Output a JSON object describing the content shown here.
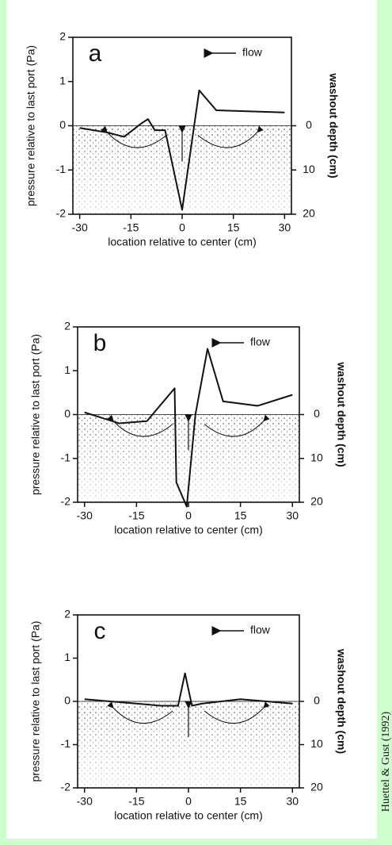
{
  "chart_data": [
    {
      "type": "line",
      "title": "a",
      "annotation": "flow",
      "y_label": "pressure relative to last port (Pa)",
      "y2_label": "washout depth (cm)",
      "x_label": "location relative to center (cm)",
      "x": [
        -30,
        -22,
        -17,
        -12,
        -10,
        -8,
        -5,
        0,
        5,
        10,
        30
      ],
      "series": [
        {
          "color": "#111111",
          "values": [
            -0.05,
            -0.15,
            -0.25,
            0.05,
            0.15,
            -0.1,
            -0.1,
            -1.9,
            0.8,
            0.35,
            0.3
          ]
        }
      ],
      "xlim": [
        -32,
        32
      ],
      "xticks": [
        -30,
        -15,
        0,
        15,
        30
      ],
      "ylim": [
        -2,
        2
      ],
      "yticks": [
        -2,
        -1,
        0,
        1,
        2
      ],
      "y2lim": [
        20,
        -20
      ],
      "y2ticks": [
        0,
        10,
        20
      ]
    },
    {
      "type": "line",
      "title": "b",
      "annotation": "flow",
      "y_label": "pressure relative to last port (Pa)",
      "y2_label": "washout depth (cm)",
      "x_label": "location relative to center  (cm)",
      "x": [
        -30,
        -20,
        -12,
        -4,
        -3.5,
        -0.5,
        2,
        5.5,
        10,
        20,
        30
      ],
      "series": [
        {
          "color": "#111111",
          "values": [
            0.05,
            -0.2,
            -0.15,
            0.6,
            -1.55,
            -2.1,
            0,
            1.5,
            0.3,
            0.2,
            0.45
          ]
        }
      ],
      "xlim": [
        -32,
        32
      ],
      "xticks": [
        -30,
        -15,
        0,
        15,
        30
      ],
      "ylim": [
        -2,
        2
      ],
      "yticks": [
        -2,
        -1,
        0,
        1,
        2
      ],
      "y2lim": [
        20,
        -20
      ],
      "y2ticks": [
        0,
        10,
        20
      ]
    },
    {
      "type": "line",
      "title": "c",
      "annotation": "flow",
      "y_label": "pressure relative to last port (Pa)",
      "y2_label": "washout depth (cm)",
      "x_label": "location relative to center (cm)",
      "x": [
        -30,
        -15,
        -8,
        -3,
        -1,
        1,
        4,
        15,
        30
      ],
      "series": [
        {
          "color": "#111111",
          "values": [
            0.05,
            -0.05,
            -0.1,
            -0.1,
            0.65,
            -0.1,
            -0.05,
            0.05,
            -0.05
          ]
        }
      ],
      "xlim": [
        -32,
        32
      ],
      "xticks": [
        -30,
        -15,
        0,
        15,
        30
      ],
      "ylim": [
        -2,
        2
      ],
      "yticks": [
        -2,
        -1,
        0,
        1,
        2
      ],
      "y2lim": [
        20,
        -20
      ],
      "y2ticks": [
        0,
        10,
        20
      ]
    }
  ],
  "credit": "Huettel & Gust (1992)"
}
